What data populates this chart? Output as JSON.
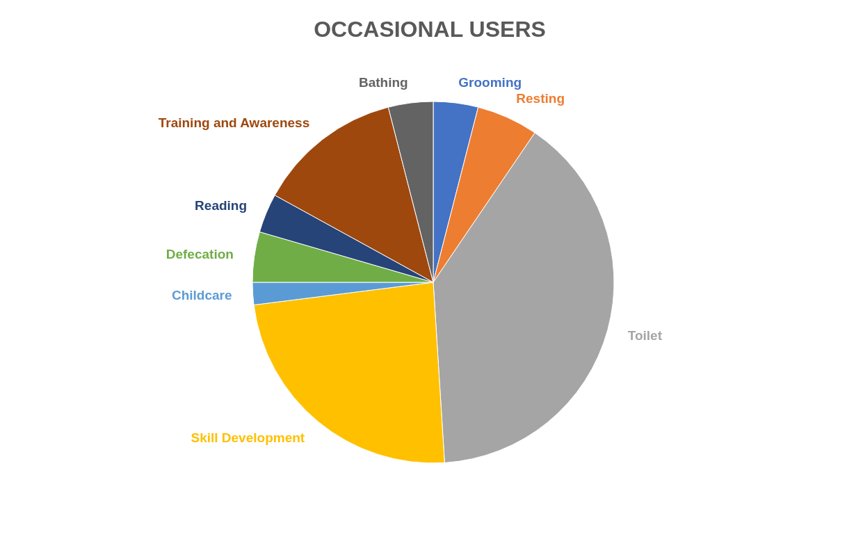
{
  "chart_data": {
    "type": "pie",
    "title": "OCCASIONAL USERS",
    "categories": [
      "Grooming",
      "Resting",
      "Toilet",
      "Skill Development",
      "Childcare",
      "Defecation",
      "Reading",
      "Training and Awareness",
      "Bathing"
    ],
    "values": [
      4,
      5.5,
      39.5,
      24,
      2,
      4.5,
      3.5,
      13,
      4
    ],
    "colors": [
      "#4472c4",
      "#ed7d31",
      "#a5a5a5",
      "#ffc000",
      "#5b9bd5",
      "#70ad47",
      "#264478",
      "#9e480e",
      "#636363"
    ],
    "legend": false
  }
}
